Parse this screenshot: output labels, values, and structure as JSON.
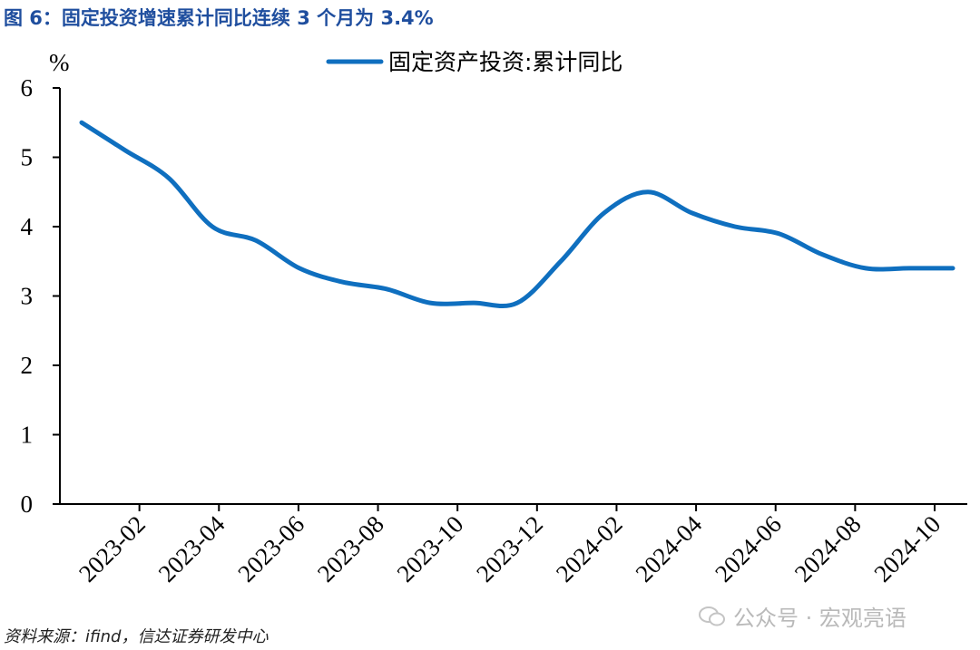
{
  "figure_title": "图 6：固定投资增速累计同比连续 3 个月为 3.4%",
  "source_note": "资料来源：ifind，信达证券研发中心",
  "watermark": "公众号 · 宏观亮语",
  "chart_data": {
    "type": "line",
    "ylabel": "%",
    "ylim": [
      0,
      6
    ],
    "y_ticks": [
      "0",
      "1",
      "2",
      "3",
      "4",
      "5",
      "6"
    ],
    "x_ticks": [
      "2023-02",
      "2023-04",
      "2023-06",
      "2023-08",
      "2023-10",
      "2023-12",
      "2024-02",
      "2024-04",
      "2024-06",
      "2024-08",
      "2024-10"
    ],
    "x": [
      "2023-02",
      "2023-03",
      "2023-04",
      "2023-05",
      "2023-06",
      "2023-07",
      "2023-08",
      "2023-09",
      "2023-10",
      "2023-11",
      "2023-12",
      "2024-01",
      "2024-02",
      "2024-03",
      "2024-04",
      "2024-05",
      "2024-06",
      "2024-07",
      "2024-08",
      "2024-09",
      "2024-10"
    ],
    "grid": false,
    "legend_position": "top-center",
    "color": "#0f6fbf",
    "series": [
      {
        "name": "固定资产投资:累计同比",
        "values": [
          5.5,
          5.1,
          4.7,
          4.0,
          3.8,
          3.4,
          3.2,
          3.1,
          2.9,
          2.9,
          2.9,
          3.5,
          4.2,
          4.5,
          4.2,
          4.0,
          3.9,
          3.6,
          3.4,
          3.4,
          3.4
        ]
      }
    ]
  }
}
